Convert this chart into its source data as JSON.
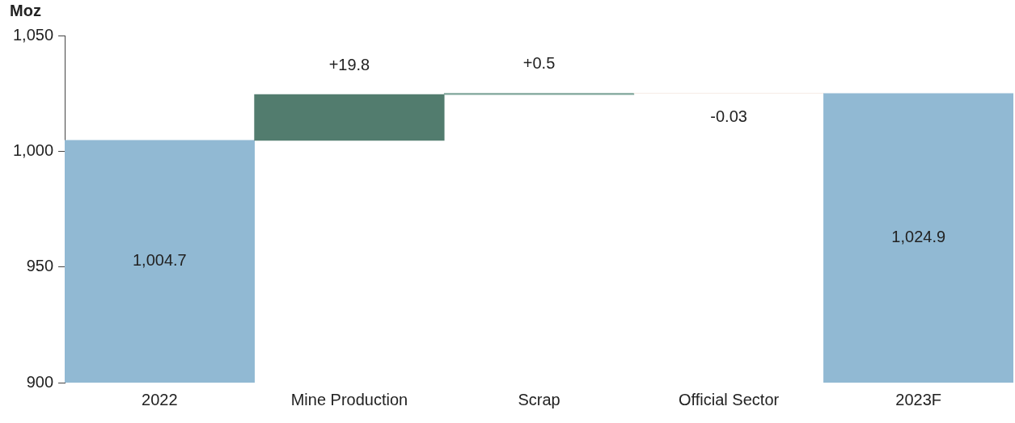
{
  "chart_data": {
    "type": "bar",
    "ylabel": "Moz",
    "categories": [
      "2022",
      "Mine Production",
      "Scrap",
      "Official Sector",
      "2023F"
    ],
    "values": [
      1004.7,
      19.8,
      0.5,
      -0.03,
      1024.9
    ],
    "base": [
      0,
      1004.7,
      1024.5,
      1025.0,
      0
    ],
    "colors": [
      "#91b9d3",
      "#527c6e",
      "#7fa59a",
      "#f3e6de",
      "#91b9d3"
    ],
    "value_labels": [
      "1,004.7",
      "+19.8",
      "+0.5",
      "-0.03",
      "1,024.9"
    ],
    "ylim": [
      900,
      1050
    ],
    "yticks": [
      {
        "value": 900,
        "label": "900"
      },
      {
        "value": 950,
        "label": "950"
      },
      {
        "value": 1000,
        "label": "1,000"
      },
      {
        "value": 1050,
        "label": "1,050"
      }
    ],
    "grid": false,
    "legend": false
  }
}
